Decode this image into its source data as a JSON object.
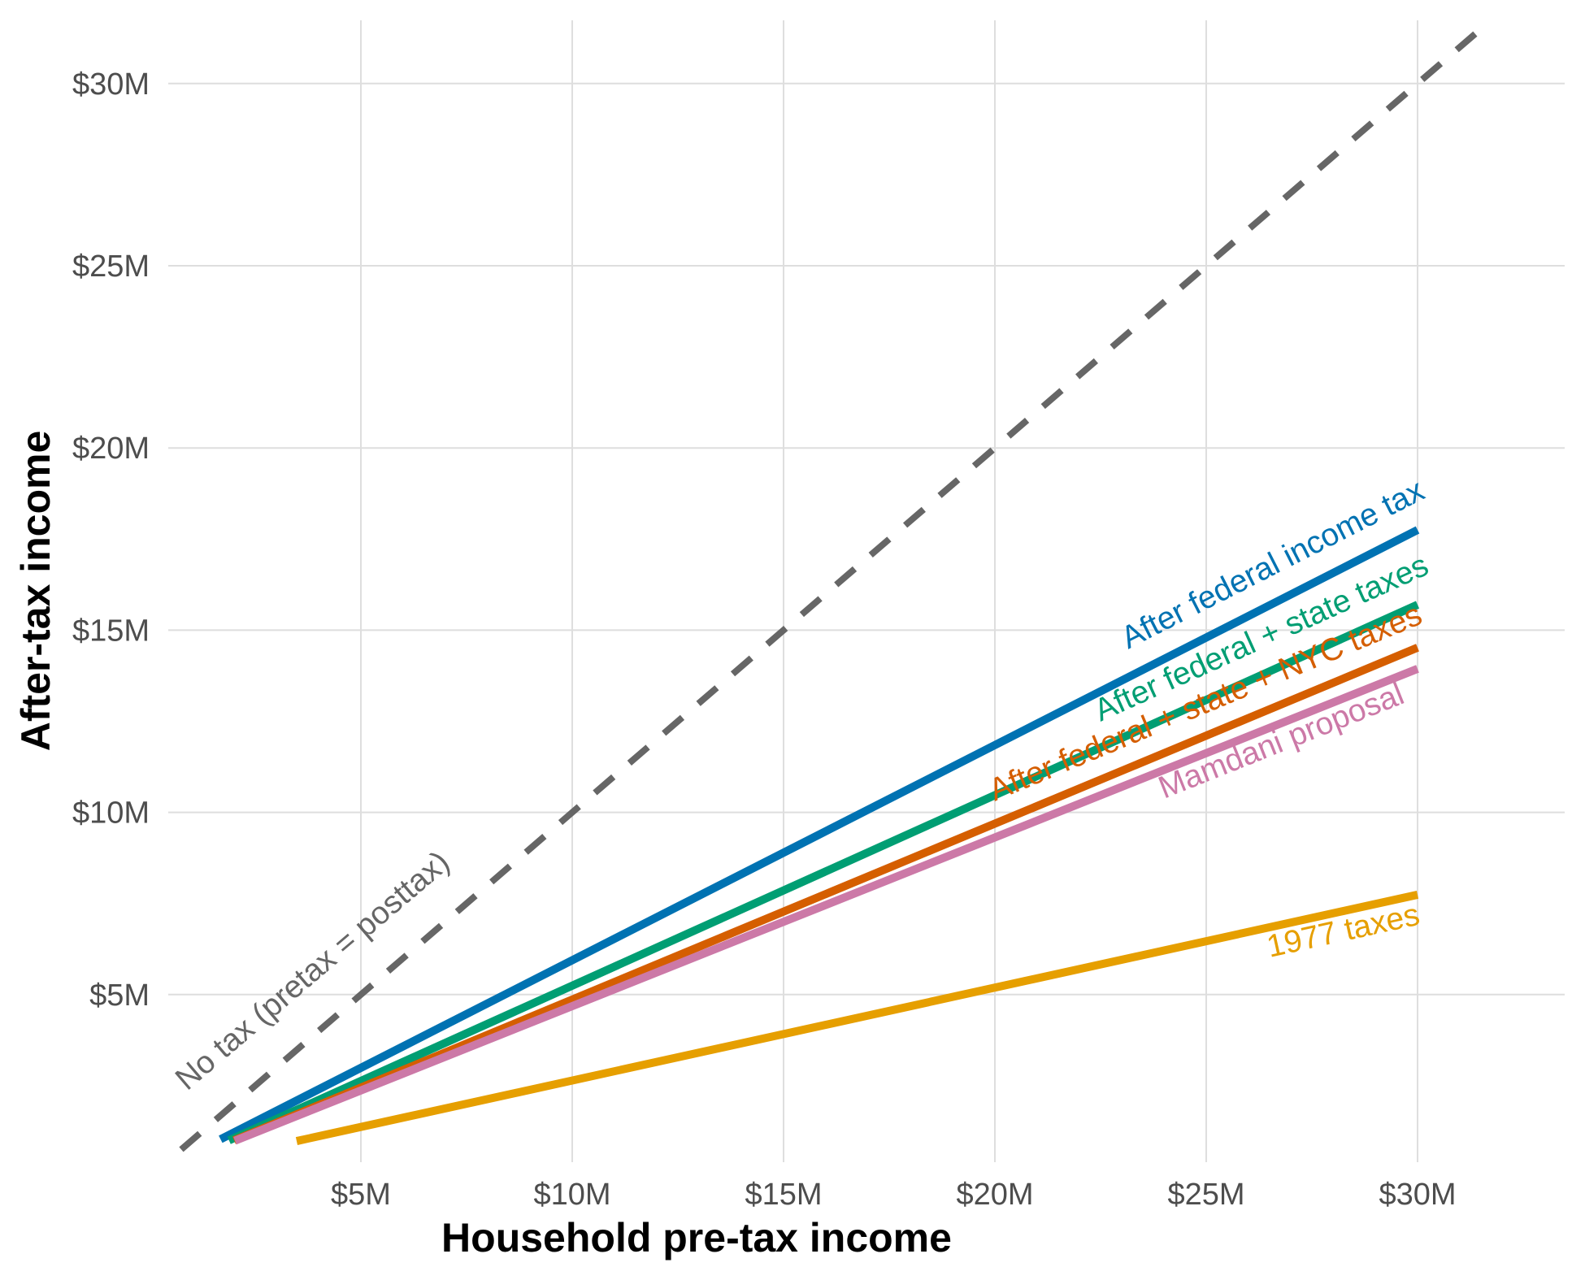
{
  "chart_data": {
    "type": "line",
    "title": "",
    "xlabel": "Household pre-tax income",
    "ylabel": "After-tax income",
    "xlim": [
      0.5,
      32.5
    ],
    "ylim": [
      0.3,
      31.8
    ],
    "grid": true,
    "legend": "none (direct labels on lines)",
    "x_ticks": [
      {
        "value": 5,
        "label": "$5M"
      },
      {
        "value": 10,
        "label": "$10M"
      },
      {
        "value": 15,
        "label": "$15M"
      },
      {
        "value": 20,
        "label": "$20M"
      },
      {
        "value": 25,
        "label": "$25M"
      },
      {
        "value": 30,
        "label": "$30M"
      }
    ],
    "y_ticks": [
      {
        "value": 5,
        "label": "$5M"
      },
      {
        "value": 10,
        "label": "$10M"
      },
      {
        "value": 15,
        "label": "$15M"
      },
      {
        "value": 20,
        "label": "$20M"
      },
      {
        "value": 25,
        "label": "$25M"
      },
      {
        "value": 30,
        "label": "$30M"
      }
    ],
    "units": "millions of dollars",
    "series": [
      {
        "name": "No tax (pretax = posttax)",
        "color": "#666666",
        "style": "dashed",
        "x": [
          0.75,
          31.5
        ],
        "y": [
          0.75,
          31.5
        ]
      },
      {
        "name": "After federal income tax",
        "color": "#0072B2",
        "style": "solid",
        "x": [
          1.68,
          30
        ],
        "y": [
          1.03,
          17.75
        ]
      },
      {
        "name": "After federal + state taxes",
        "color": "#009E73",
        "style": "solid",
        "x": [
          1.88,
          30
        ],
        "y": [
          1.0,
          15.7
        ]
      },
      {
        "name": "After federal + state + NYC taxes",
        "color": "#D55E00",
        "style": "solid",
        "x": [
          2.0,
          30
        ],
        "y": [
          1.0,
          14.52
        ]
      },
      {
        "name": "Mamdani proposal",
        "color": "#CC79A7",
        "style": "solid",
        "x": [
          2.02,
          30
        ],
        "y": [
          0.99,
          13.94
        ]
      },
      {
        "name": "1977 taxes",
        "color": "#E69F00",
        "style": "solid",
        "x": [
          3.48,
          30
        ],
        "y": [
          0.98,
          7.74
        ]
      }
    ]
  }
}
